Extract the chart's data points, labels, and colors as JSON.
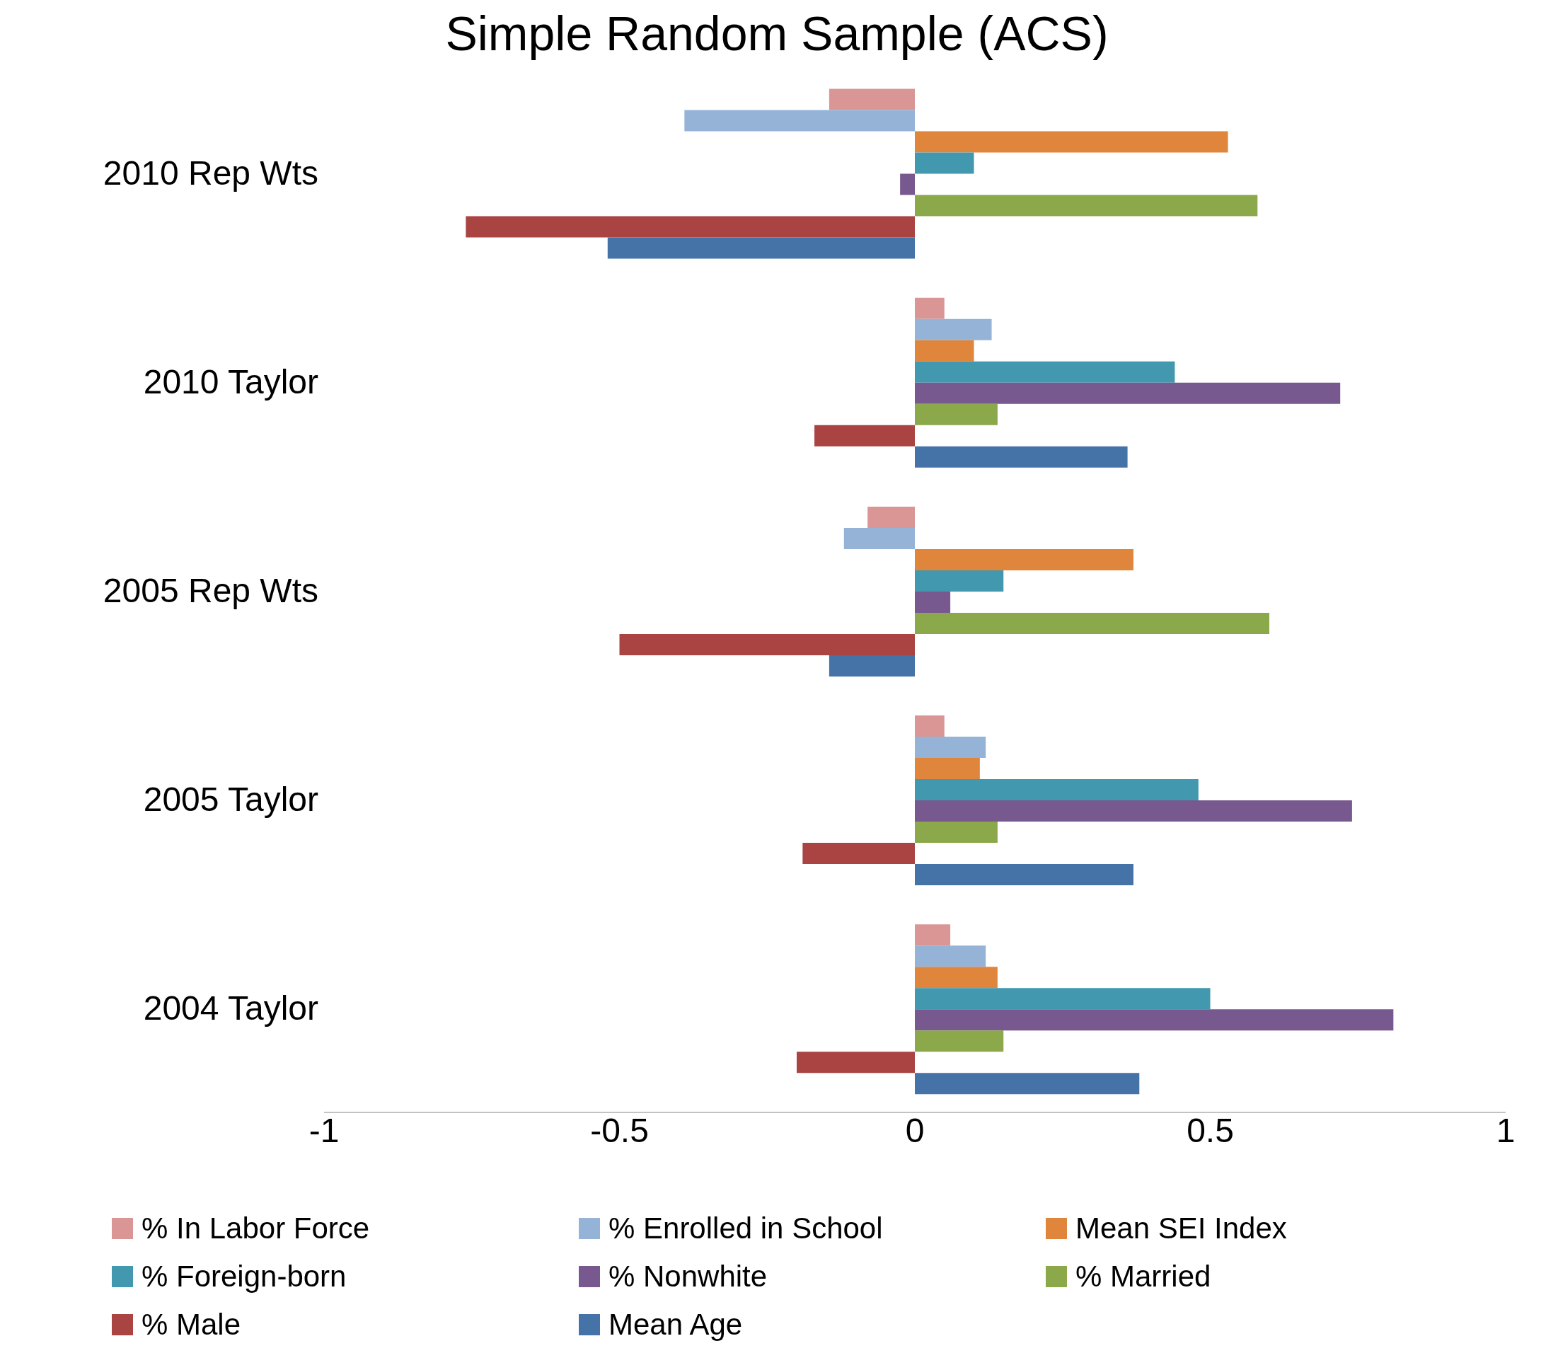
{
  "chart_data": {
    "type": "bar",
    "orientation": "horizontal",
    "title": "Simple Random Sample (ACS)",
    "categories": [
      "2010 Rep Wts",
      "2010 Taylor",
      "2005 Rep Wts",
      "2005 Taylor",
      "2004 Taylor"
    ],
    "series": [
      {
        "name": "% In Labor Force",
        "color": "#d99694",
        "values": [
          -0.145,
          0.05,
          -0.08,
          0.05,
          0.06
        ]
      },
      {
        "name": "% Enrolled in School",
        "color": "#95b3d7",
        "values": [
          -0.39,
          0.13,
          -0.12,
          0.12,
          0.12
        ]
      },
      {
        "name": "Mean SEI Index",
        "color": "#e0853c",
        "values": [
          0.53,
          0.1,
          0.37,
          0.11,
          0.14
        ]
      },
      {
        "name": "% Foreign-born",
        "color": "#4198af",
        "values": [
          0.1,
          0.44,
          0.15,
          0.48,
          0.5
        ]
      },
      {
        "name": "% Nonwhite",
        "color": "#77588f",
        "values": [
          -0.025,
          0.72,
          0.06,
          0.74,
          0.81
        ]
      },
      {
        "name": "% Married",
        "color": "#8ba84a",
        "values": [
          0.58,
          0.14,
          0.6,
          0.14,
          0.15
        ]
      },
      {
        "name": "% Male",
        "color": "#a94442",
        "values": [
          -0.76,
          -0.17,
          -0.5,
          -0.19,
          -0.2
        ]
      },
      {
        "name": "Mean Age",
        "color": "#4572a7",
        "values": [
          -0.52,
          0.36,
          -0.145,
          0.37,
          0.38
        ]
      }
    ],
    "xlim": [
      -1,
      1
    ],
    "xticks": [
      -1,
      -0.5,
      0,
      0.5,
      1
    ],
    "grid": false,
    "legend": "bottom"
  }
}
